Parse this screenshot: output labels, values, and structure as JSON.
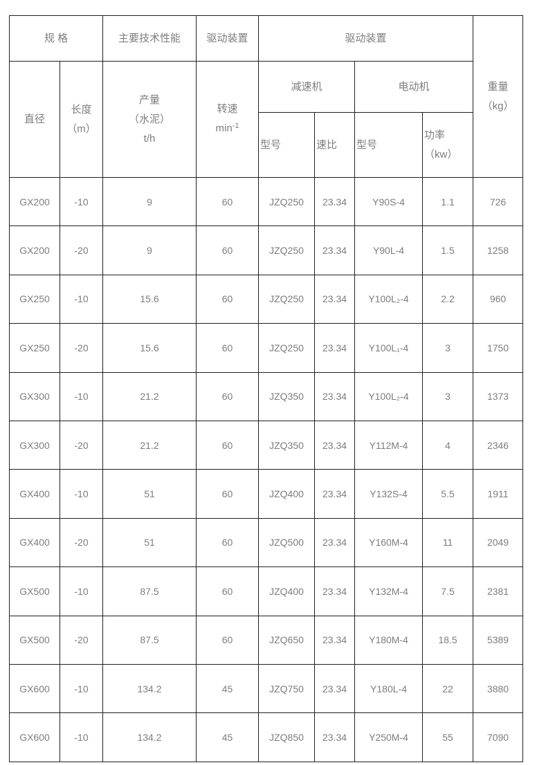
{
  "page": {
    "background": "#ffffff",
    "text_color": "#7d7d7d",
    "border_color": "#1f1f1f"
  },
  "table": {
    "header": {
      "row1": {
        "spec_group": "规 格",
        "performance_group": "主要技术性能",
        "drive_group_narrow": "驱动装置",
        "drive_group_wide": "驱动装置"
      },
      "row2": {
        "diameter": "直径",
        "length_lines": [
          "长度",
          "（m）"
        ],
        "output_lines": [
          "产量",
          "（水泥）",
          "t/h"
        ],
        "speed_label": "转速",
        "speed_unit_base": "min",
        "speed_unit_exp": "-1",
        "reducer_group": "减速机",
        "motor_group": "电动机",
        "weight_lines": [
          "重量",
          "（kg）"
        ]
      },
      "row3": {
        "reducer_model": "型号",
        "speed_ratio": "速比",
        "motor_model": "型号",
        "power_lines": [
          "功率",
          "（kw）"
        ]
      }
    },
    "column_names": [
      "spec-model",
      "length",
      "output",
      "speed",
      "reducer-model",
      "reducer-ratio",
      "motor-model",
      "motor-power",
      "weight"
    ],
    "rows": [
      [
        "GX200",
        "-10",
        "9",
        "60",
        "JZQ250",
        "23.34",
        "Y90S-4",
        "1.1",
        "726"
      ],
      [
        "GX200",
        "-20",
        "9",
        "60",
        "JZQ250",
        "23.34",
        "Y90L-4",
        "1.5",
        "1258"
      ],
      [
        "GX250",
        "-10",
        "15.6",
        "60",
        "JZQ250",
        "23.34",
        "Y100L₂-4",
        "2.2",
        "960"
      ],
      [
        "GX250",
        "-20",
        "15.6",
        "60",
        "JZQ250",
        "23.34",
        "Y100L₁-4",
        "3",
        "1750"
      ],
      [
        "GX300",
        "-10",
        "21.2",
        "60",
        "JZQ350",
        "23.34",
        "Y100L₂-4",
        "3",
        "1373"
      ],
      [
        "GX300",
        "-20",
        "21.2",
        "60",
        "JZQ350",
        "23.34",
        "Y112M-4",
        "4",
        "2346"
      ],
      [
        "GX400",
        "-10",
        "51",
        "60",
        "JZQ400",
        "23.34",
        "Y132S-4",
        "5.5",
        "1911"
      ],
      [
        "GX400",
        "-20",
        "51",
        "60",
        "JZQ500",
        "23.34",
        "Y160M-4",
        "11",
        "2049"
      ],
      [
        "GX500",
        "-10",
        "87.5",
        "60",
        "JZQ400",
        "23.34",
        "Y132M-4",
        "7.5",
        "2381"
      ],
      [
        "GX500",
        "-20",
        "87.5",
        "60",
        "JZQ650",
        "23.34",
        "Y180M-4",
        "18.5",
        "5389"
      ],
      [
        "GX600",
        "-10",
        "134.2",
        "45",
        "JZQ750",
        "23.34",
        "Y180L-4",
        "22",
        "3880"
      ],
      [
        "GX600",
        "-10",
        "134.2",
        "45",
        "JZQ850",
        "23.34",
        "Y250M-4",
        "55",
        "7090"
      ]
    ]
  }
}
